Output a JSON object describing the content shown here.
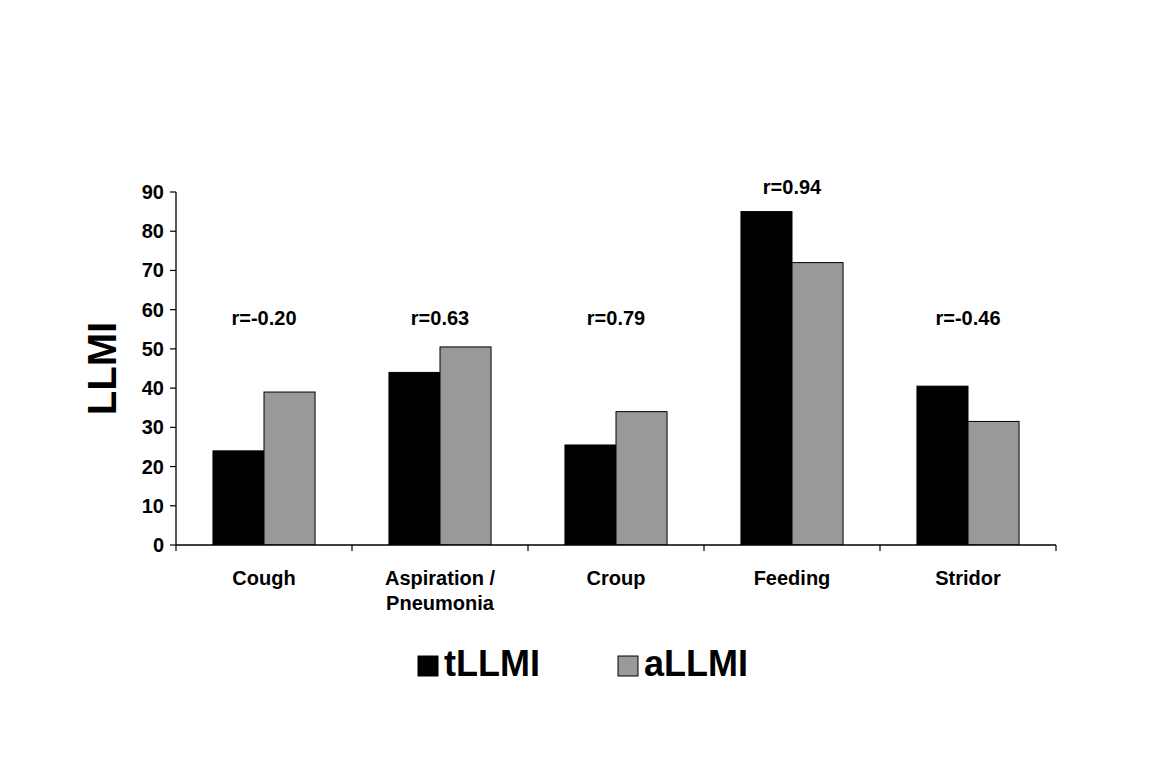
{
  "chart_data": {
    "type": "bar",
    "y_label": "LLMI",
    "categories": [
      "Cough",
      "Aspiration / Pneumonia",
      "Croup",
      "Feeding",
      "Stridor"
    ],
    "series": [
      {
        "name": "tLLMI",
        "color": "#000000",
        "values": [
          24,
          44,
          25.5,
          85,
          40.5
        ]
      },
      {
        "name": "aLLMI",
        "color": "#999999",
        "values": [
          39,
          50.5,
          34,
          72,
          31.5
        ]
      }
    ],
    "annotations": [
      "r=-0.20",
      "r=0.63",
      "r=0.79",
      "r=0.94",
      "r=-0.46"
    ],
    "ylim": [
      0,
      90
    ],
    "yticks": [
      0,
      10,
      20,
      30,
      40,
      50,
      60,
      70,
      80,
      90
    ],
    "grid": false,
    "legend": "bottom"
  }
}
